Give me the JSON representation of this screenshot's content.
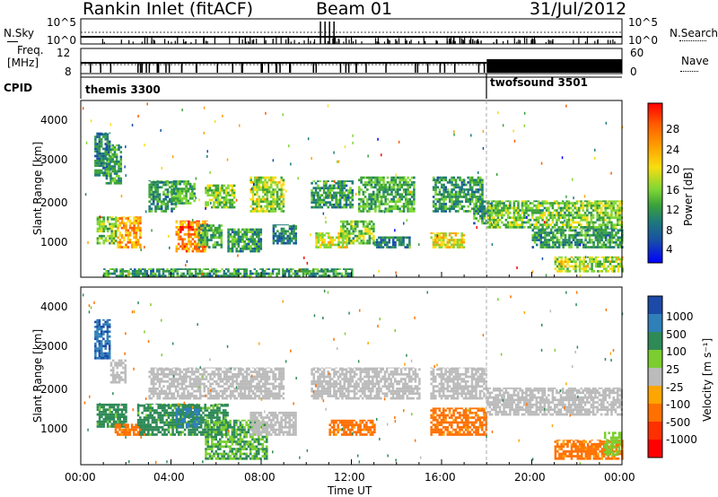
{
  "header": {
    "station": "Rankin Inlet (fitACF)",
    "beam": "Beam 01",
    "date": "31/Jul/2012"
  },
  "top_panels": {
    "nsky_label": "N.Sky",
    "nsearch_label": "N.Search",
    "nsky_ticks": [
      "10^5",
      "10^0"
    ],
    "nsearch_ticks": [
      "10^5",
      "10^0"
    ],
    "freq_label_line1": "Freq.",
    "freq_label_line2": "[MHz]",
    "freq_ticks": [
      "12",
      "8"
    ],
    "nave_label": "Nave",
    "nave_ticks": [
      "60",
      "0"
    ],
    "cpid_label": "CPID",
    "cpid_modes": [
      {
        "name": "themis 3300",
        "start_h": 0,
        "end_h": 18
      },
      {
        "name": "twofsound 3501",
        "start_h": 18,
        "end_h": 24
      }
    ]
  },
  "panels": {
    "yaxis_label": "Slant Range [km]",
    "yticks": [
      "4000",
      "3000",
      "2000",
      "1000"
    ],
    "xaxis_label": "Time UT",
    "xticks": [
      "00:00",
      "04:00",
      "08:00",
      "12:00",
      "16:00",
      "20:00",
      "00:00"
    ]
  },
  "colorbars": {
    "power": {
      "label": "Power [dB]",
      "ticks": [
        "28",
        "24",
        "20",
        "16",
        "12",
        "8",
        "4"
      ],
      "colors": [
        "#ff0000",
        "#ff5a00",
        "#ff9f00",
        "#f8dd10",
        "#7fd635",
        "#3aa13a",
        "#1e7a7a",
        "#184fa6",
        "#0000ff"
      ]
    },
    "velocity": {
      "label": "Velocity [m s⁻¹]",
      "ticks": [
        "1000",
        "500",
        "100",
        "25",
        "-25",
        "-100",
        "-500",
        "-1000"
      ],
      "colors": [
        "#1c4aa8",
        "#2f7fb8",
        "#2e8a57",
        "#7ccd2f",
        "#bbbbbb",
        "#ffa500",
        "#ff7000",
        "#ff3000",
        "#ff0000"
      ]
    }
  },
  "chart_data": [
    {
      "type": "heatmap",
      "title": "Power",
      "xlabel": "Time UT",
      "ylabel": "Slant Range [km]",
      "x_range_h": [
        0,
        24
      ],
      "ylim": [
        180,
        4600
      ],
      "units": "dB",
      "clim": [
        0,
        30
      ],
      "regions": [
        {
          "t0": 0.6,
          "t1": 1.3,
          "r0": 2700,
          "r1": 3800,
          "value": 8
        },
        {
          "t0": 0.7,
          "t1": 1.6,
          "r0": 1000,
          "r1": 1700,
          "value": 14
        },
        {
          "t0": 1.1,
          "t1": 1.8,
          "r0": 2500,
          "r1": 3500,
          "value": 10
        },
        {
          "t0": 1.6,
          "t1": 2.6,
          "r0": 900,
          "r1": 1700,
          "value": 22
        },
        {
          "t0": 3.0,
          "t1": 4.2,
          "r0": 1800,
          "r1": 2600,
          "value": 10
        },
        {
          "t0": 4.0,
          "t1": 5.0,
          "r0": 2000,
          "r1": 2600,
          "value": 12
        },
        {
          "t0": 4.2,
          "t1": 5.6,
          "r0": 800,
          "r1": 1600,
          "value": 24
        },
        {
          "t0": 5.2,
          "t1": 6.2,
          "r0": 900,
          "r1": 1500,
          "value": 12
        },
        {
          "t0": 5.5,
          "t1": 6.8,
          "r0": 1900,
          "r1": 2500,
          "value": 14
        },
        {
          "t0": 6.5,
          "t1": 8.0,
          "r0": 800,
          "r1": 1400,
          "value": 10
        },
        {
          "t0": 7.5,
          "t1": 9.0,
          "r0": 1800,
          "r1": 2700,
          "value": 16
        },
        {
          "t0": 8.5,
          "t1": 9.5,
          "r0": 1000,
          "r1": 1500,
          "value": 8
        },
        {
          "t0": 10.2,
          "t1": 12.0,
          "r0": 1900,
          "r1": 2600,
          "value": 10
        },
        {
          "t0": 10.4,
          "t1": 11.8,
          "r0": 900,
          "r1": 1300,
          "value": 18
        },
        {
          "t0": 11.5,
          "t1": 13.0,
          "r0": 1000,
          "r1": 1600,
          "value": 14
        },
        {
          "t0": 12.3,
          "t1": 14.8,
          "r0": 1800,
          "r1": 2700,
          "value": 12
        },
        {
          "t0": 13.0,
          "t1": 14.6,
          "r0": 900,
          "r1": 1200,
          "value": 8
        },
        {
          "t0": 15.6,
          "t1": 17.8,
          "r0": 1800,
          "r1": 2700,
          "value": 10
        },
        {
          "t0": 15.5,
          "t1": 17.0,
          "r0": 900,
          "r1": 1300,
          "value": 18
        },
        {
          "t0": 17.4,
          "t1": 18.2,
          "r0": 1500,
          "r1": 2100,
          "value": 10
        },
        {
          "t0": 18.0,
          "t1": 24.0,
          "r0": 1400,
          "r1": 2100,
          "value": 14
        },
        {
          "t0": 20.0,
          "t1": 24.0,
          "r0": 900,
          "r1": 1400,
          "value": 10
        },
        {
          "t0": 21.0,
          "t1": 24.0,
          "r0": 300,
          "r1": 700,
          "value": 16
        },
        {
          "t0": 1.0,
          "t1": 12.0,
          "r0": 180,
          "r1": 400,
          "value": 10
        }
      ]
    },
    {
      "type": "heatmap",
      "title": "Velocity",
      "xlabel": "Time UT",
      "ylabel": "Slant Range [km]",
      "x_range_h": [
        0,
        24
      ],
      "ylim": [
        180,
        4600
      ],
      "units": "m s⁻¹",
      "regions": [
        {
          "t0": 0.6,
          "t1": 1.3,
          "r0": 2800,
          "r1": 3800,
          "value": 1000
        },
        {
          "t0": 1.3,
          "t1": 2.0,
          "r0": 2200,
          "r1": 2800,
          "value": 0
        },
        {
          "t0": 0.7,
          "t1": 2.0,
          "r0": 1100,
          "r1": 1700,
          "value": 150
        },
        {
          "t0": 1.5,
          "t1": 3.0,
          "r0": 900,
          "r1": 1200,
          "value": -150
        },
        {
          "t0": 3.0,
          "t1": 9.0,
          "r0": 1800,
          "r1": 2600,
          "value": 0
        },
        {
          "t0": 2.5,
          "t1": 6.5,
          "r0": 900,
          "r1": 1700,
          "value": 150
        },
        {
          "t0": 4.2,
          "t1": 5.2,
          "r0": 1100,
          "r1": 1600,
          "value": 600
        },
        {
          "t0": 5.5,
          "t1": 8.2,
          "r0": 300,
          "r1": 1300,
          "value": 100
        },
        {
          "t0": 7.5,
          "t1": 9.5,
          "r0": 900,
          "r1": 1500,
          "value": 0
        },
        {
          "t0": 10.2,
          "t1": 15.0,
          "r0": 1800,
          "r1": 2600,
          "value": 0
        },
        {
          "t0": 11.0,
          "t1": 13.0,
          "r0": 900,
          "r1": 1300,
          "value": -150
        },
        {
          "t0": 15.5,
          "t1": 18.0,
          "r0": 1800,
          "r1": 2600,
          "value": 0
        },
        {
          "t0": 15.5,
          "t1": 18.0,
          "r0": 900,
          "r1": 1600,
          "value": -150
        },
        {
          "t0": 18.0,
          "t1": 24.0,
          "r0": 1400,
          "r1": 2100,
          "value": 0
        },
        {
          "t0": 21.0,
          "t1": 24.0,
          "r0": 300,
          "r1": 800,
          "value": -150
        },
        {
          "t0": 23.2,
          "t1": 24.0,
          "r0": 400,
          "r1": 1000,
          "value": 60
        }
      ]
    }
  ]
}
